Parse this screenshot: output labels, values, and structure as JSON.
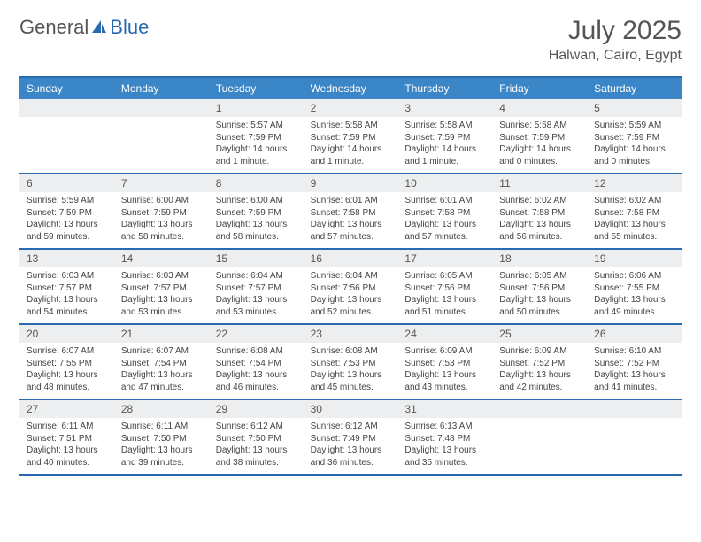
{
  "brand": {
    "part1": "General",
    "part2": "Blue"
  },
  "title": "July 2025",
  "location": "Halwan, Cairo, Egypt",
  "colors": {
    "header_bg": "#3b86c7",
    "border": "#2a6ab0",
    "daynum_bg": "#eceeef",
    "text": "#555"
  },
  "day_names": [
    "Sunday",
    "Monday",
    "Tuesday",
    "Wednesday",
    "Thursday",
    "Friday",
    "Saturday"
  ],
  "weeks": [
    [
      {
        "empty": true
      },
      {
        "empty": true
      },
      {
        "day": "1",
        "sunrise": "Sunrise: 5:57 AM",
        "sunset": "Sunset: 7:59 PM",
        "daylight": "Daylight: 14 hours and 1 minute."
      },
      {
        "day": "2",
        "sunrise": "Sunrise: 5:58 AM",
        "sunset": "Sunset: 7:59 PM",
        "daylight": "Daylight: 14 hours and 1 minute."
      },
      {
        "day": "3",
        "sunrise": "Sunrise: 5:58 AM",
        "sunset": "Sunset: 7:59 PM",
        "daylight": "Daylight: 14 hours and 1 minute."
      },
      {
        "day": "4",
        "sunrise": "Sunrise: 5:58 AM",
        "sunset": "Sunset: 7:59 PM",
        "daylight": "Daylight: 14 hours and 0 minutes."
      },
      {
        "day": "5",
        "sunrise": "Sunrise: 5:59 AM",
        "sunset": "Sunset: 7:59 PM",
        "daylight": "Daylight: 14 hours and 0 minutes."
      }
    ],
    [
      {
        "day": "6",
        "sunrise": "Sunrise: 5:59 AM",
        "sunset": "Sunset: 7:59 PM",
        "daylight": "Daylight: 13 hours and 59 minutes."
      },
      {
        "day": "7",
        "sunrise": "Sunrise: 6:00 AM",
        "sunset": "Sunset: 7:59 PM",
        "daylight": "Daylight: 13 hours and 58 minutes."
      },
      {
        "day": "8",
        "sunrise": "Sunrise: 6:00 AM",
        "sunset": "Sunset: 7:59 PM",
        "daylight": "Daylight: 13 hours and 58 minutes."
      },
      {
        "day": "9",
        "sunrise": "Sunrise: 6:01 AM",
        "sunset": "Sunset: 7:58 PM",
        "daylight": "Daylight: 13 hours and 57 minutes."
      },
      {
        "day": "10",
        "sunrise": "Sunrise: 6:01 AM",
        "sunset": "Sunset: 7:58 PM",
        "daylight": "Daylight: 13 hours and 57 minutes."
      },
      {
        "day": "11",
        "sunrise": "Sunrise: 6:02 AM",
        "sunset": "Sunset: 7:58 PM",
        "daylight": "Daylight: 13 hours and 56 minutes."
      },
      {
        "day": "12",
        "sunrise": "Sunrise: 6:02 AM",
        "sunset": "Sunset: 7:58 PM",
        "daylight": "Daylight: 13 hours and 55 minutes."
      }
    ],
    [
      {
        "day": "13",
        "sunrise": "Sunrise: 6:03 AM",
        "sunset": "Sunset: 7:57 PM",
        "daylight": "Daylight: 13 hours and 54 minutes."
      },
      {
        "day": "14",
        "sunrise": "Sunrise: 6:03 AM",
        "sunset": "Sunset: 7:57 PM",
        "daylight": "Daylight: 13 hours and 53 minutes."
      },
      {
        "day": "15",
        "sunrise": "Sunrise: 6:04 AM",
        "sunset": "Sunset: 7:57 PM",
        "daylight": "Daylight: 13 hours and 53 minutes."
      },
      {
        "day": "16",
        "sunrise": "Sunrise: 6:04 AM",
        "sunset": "Sunset: 7:56 PM",
        "daylight": "Daylight: 13 hours and 52 minutes."
      },
      {
        "day": "17",
        "sunrise": "Sunrise: 6:05 AM",
        "sunset": "Sunset: 7:56 PM",
        "daylight": "Daylight: 13 hours and 51 minutes."
      },
      {
        "day": "18",
        "sunrise": "Sunrise: 6:05 AM",
        "sunset": "Sunset: 7:56 PM",
        "daylight": "Daylight: 13 hours and 50 minutes."
      },
      {
        "day": "19",
        "sunrise": "Sunrise: 6:06 AM",
        "sunset": "Sunset: 7:55 PM",
        "daylight": "Daylight: 13 hours and 49 minutes."
      }
    ],
    [
      {
        "day": "20",
        "sunrise": "Sunrise: 6:07 AM",
        "sunset": "Sunset: 7:55 PM",
        "daylight": "Daylight: 13 hours and 48 minutes."
      },
      {
        "day": "21",
        "sunrise": "Sunrise: 6:07 AM",
        "sunset": "Sunset: 7:54 PM",
        "daylight": "Daylight: 13 hours and 47 minutes."
      },
      {
        "day": "22",
        "sunrise": "Sunrise: 6:08 AM",
        "sunset": "Sunset: 7:54 PM",
        "daylight": "Daylight: 13 hours and 46 minutes."
      },
      {
        "day": "23",
        "sunrise": "Sunrise: 6:08 AM",
        "sunset": "Sunset: 7:53 PM",
        "daylight": "Daylight: 13 hours and 45 minutes."
      },
      {
        "day": "24",
        "sunrise": "Sunrise: 6:09 AM",
        "sunset": "Sunset: 7:53 PM",
        "daylight": "Daylight: 13 hours and 43 minutes."
      },
      {
        "day": "25",
        "sunrise": "Sunrise: 6:09 AM",
        "sunset": "Sunset: 7:52 PM",
        "daylight": "Daylight: 13 hours and 42 minutes."
      },
      {
        "day": "26",
        "sunrise": "Sunrise: 6:10 AM",
        "sunset": "Sunset: 7:52 PM",
        "daylight": "Daylight: 13 hours and 41 minutes."
      }
    ],
    [
      {
        "day": "27",
        "sunrise": "Sunrise: 6:11 AM",
        "sunset": "Sunset: 7:51 PM",
        "daylight": "Daylight: 13 hours and 40 minutes."
      },
      {
        "day": "28",
        "sunrise": "Sunrise: 6:11 AM",
        "sunset": "Sunset: 7:50 PM",
        "daylight": "Daylight: 13 hours and 39 minutes."
      },
      {
        "day": "29",
        "sunrise": "Sunrise: 6:12 AM",
        "sunset": "Sunset: 7:50 PM",
        "daylight": "Daylight: 13 hours and 38 minutes."
      },
      {
        "day": "30",
        "sunrise": "Sunrise: 6:12 AM",
        "sunset": "Sunset: 7:49 PM",
        "daylight": "Daylight: 13 hours and 36 minutes."
      },
      {
        "day": "31",
        "sunrise": "Sunrise: 6:13 AM",
        "sunset": "Sunset: 7:48 PM",
        "daylight": "Daylight: 13 hours and 35 minutes."
      },
      {
        "empty": true
      },
      {
        "empty": true
      }
    ]
  ]
}
